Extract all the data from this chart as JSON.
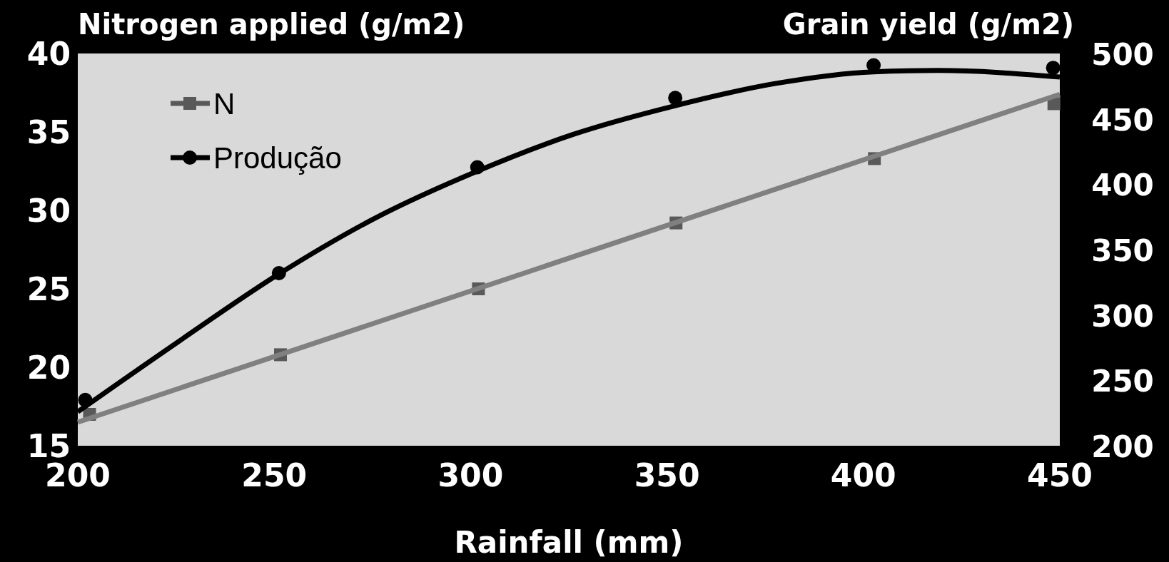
{
  "chart_data": {
    "type": "scatter",
    "ylabel": "Nitrogen applied (g/m2)",
    "y2label": "Grain yield (g/m2)",
    "xlabel": "Rainfall (mm)",
    "xlim": [
      200,
      450
    ],
    "xticks": [
      200,
      250,
      300,
      350,
      400,
      450
    ],
    "ylim": [
      15,
      40
    ],
    "yticks": [
      15,
      20,
      25,
      30,
      35,
      40
    ],
    "y2lim": [
      200,
      500
    ],
    "y2ticks": [
      200,
      250,
      300,
      350,
      400,
      450,
      500
    ],
    "grid": false,
    "legend": "top left",
    "series": [
      {
        "name": "N",
        "marker": "square",
        "color": "#595959",
        "x": [
          203,
          251.6,
          302,
          352.3,
          402.8,
          448.5
        ],
        "values": [
          17.0,
          20.8,
          25.0,
          29.2,
          33.3,
          36.8
        ]
      },
      {
        "name": "Produção",
        "marker": "circle",
        "axis": "y2",
        "color": "#000000",
        "x": [
          201.9,
          251.2,
          301.7,
          352.1,
          402.6,
          448.3
        ],
        "values": [
          235,
          332,
          413,
          466,
          491,
          489
        ]
      },
      {
        "type": "line",
        "marker": "none",
        "color": "#808080",
        "x": [
          200,
          450
        ],
        "values": [
          16.5,
          37.4
        ]
      },
      {
        "type": "line",
        "marker": "none",
        "axis": "y2",
        "color": "#000000",
        "x": [
          200,
          225.8,
          251,
          275,
          301.7,
          326,
          352,
          377.5,
          402.6,
          419,
          450
        ],
        "values": [
          226,
          280,
          331,
          373,
          410,
          438,
          460,
          477,
          486,
          487,
          482
        ]
      }
    ]
  }
}
